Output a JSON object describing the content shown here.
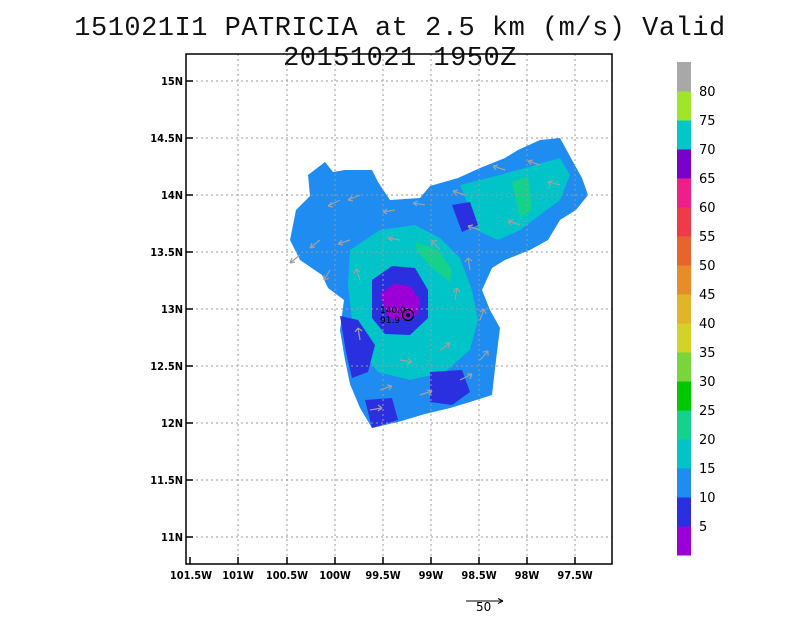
{
  "title": "151021I1 PATRICIA at 2.5 km (m/s) Valid 20151021 1950Z",
  "storm_label": {
    "line1": "140.0",
    "line2": "91.9"
  },
  "lat_ticks": [
    "15N",
    "14.5N",
    "14N",
    "13.5N",
    "13N",
    "12.5N",
    "12N",
    "11.5N",
    "11N"
  ],
  "lon_ticks": [
    "101.5W",
    "101W",
    "100.5W",
    "100W",
    "99.5W",
    "99W",
    "98.5W",
    "98W",
    "97.5W"
  ],
  "colorbar": {
    "labels": [
      "5",
      "10",
      "15",
      "20",
      "25",
      "30",
      "35",
      "40",
      "45",
      "50",
      "55",
      "60",
      "65",
      "70",
      "75",
      "80"
    ],
    "colors": [
      "#9a00d6",
      "#2a30e0",
      "#1e8cf0",
      "#00c4c8",
      "#14d28c",
      "#00c800",
      "#78d63a",
      "#d2d228",
      "#e2b428",
      "#e68c28",
      "#e8642d",
      "#f03a48",
      "#ee1e8a",
      "#7800c8",
      "#00c8c8",
      "#a0e628",
      "#a8a8a8"
    ]
  },
  "reference_vector": {
    "label": "50"
  }
}
